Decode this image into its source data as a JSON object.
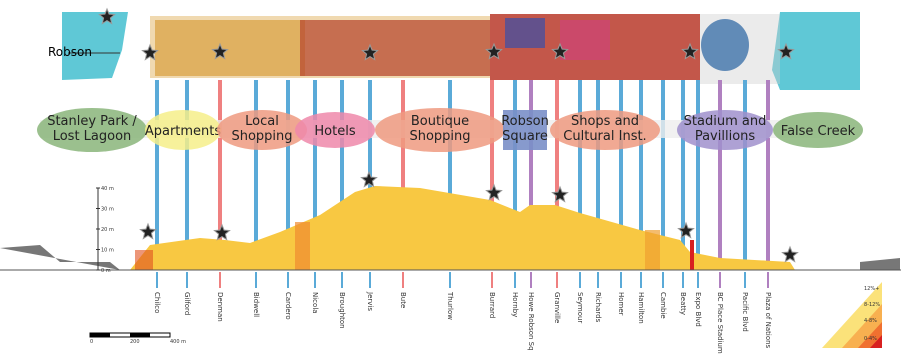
{
  "map": {
    "label": "Robson"
  },
  "zones": [
    "Stanley Park / Lost Lagoon",
    "Apartments",
    "Local Shopping",
    "Hotels",
    "Boutique Shopping",
    "Robson Square",
    "Shops and Cultural Inst.",
    "Stadium and Pavillions",
    "False Creek"
  ],
  "profile": {
    "axis_labels": [
      "40 m",
      "30 m",
      "20 m",
      "10 m",
      "0 m"
    ]
  },
  "streets": [
    "Chilco",
    "Gilford",
    "Denman",
    "Bidwell",
    "Cardero",
    "Nicola",
    "Broughton",
    "Jervis",
    "Bute",
    "Thurlow",
    "Burrard",
    "Hornby",
    "Howe Robson Sq",
    "Granville",
    "Seymour",
    "Richards",
    "Homer",
    "Hamilton",
    "Cambie",
    "Beatty",
    "Expo Blvd",
    "BC Place Stadium",
    "Pacific Blvd",
    "Plaza of Nations"
  ],
  "scale": {
    "labels": [
      "0",
      "200",
      "400 m"
    ]
  },
  "legend": {
    "labels": [
      "12%+",
      "8-12%",
      "4-8%",
      "0-4%"
    ]
  }
}
